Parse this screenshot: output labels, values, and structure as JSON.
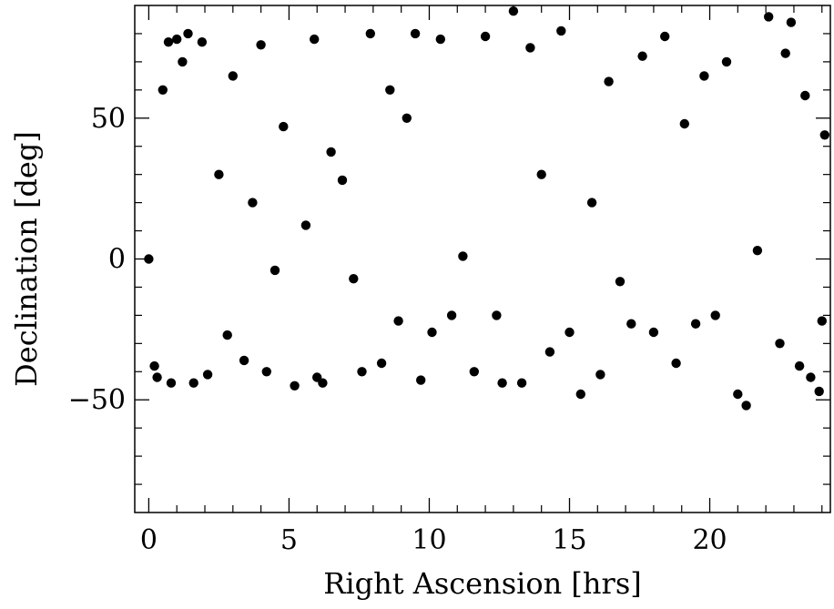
{
  "chart_data": {
    "type": "scatter",
    "title": "",
    "xlabel": "Right Ascension [hrs]",
    "ylabel": "Declination [deg]",
    "xlim": [
      -0.5,
      24.3
    ],
    "ylim": [
      -90,
      90
    ],
    "xticks": [
      0,
      5,
      10,
      15,
      20
    ],
    "yticks": [
      -50,
      0,
      50
    ],
    "xtick_labels": [
      "0",
      "5",
      "10",
      "15",
      "20"
    ],
    "ytick_labels": [
      "−50",
      "0",
      "50"
    ],
    "x_minor_step": 1,
    "y_minor_step": 10,
    "grid": false,
    "marker_color": "#000000",
    "series": [
      {
        "points": [
          [
            0.0,
            0.0
          ],
          [
            0.2,
            -38
          ],
          [
            0.3,
            -42
          ],
          [
            0.5,
            60
          ],
          [
            0.7,
            77
          ],
          [
            0.8,
            -44
          ],
          [
            1.0,
            78
          ],
          [
            1.2,
            70
          ],
          [
            1.4,
            80
          ],
          [
            1.6,
            -44
          ],
          [
            1.9,
            77
          ],
          [
            2.1,
            -41
          ],
          [
            2.5,
            30
          ],
          [
            2.8,
            -27
          ],
          [
            3.0,
            65
          ],
          [
            3.4,
            -36
          ],
          [
            3.7,
            20
          ],
          [
            4.0,
            76
          ],
          [
            4.2,
            -40
          ],
          [
            4.5,
            -4
          ],
          [
            4.8,
            47
          ],
          [
            5.2,
            -45
          ],
          [
            5.6,
            12
          ],
          [
            5.9,
            78
          ],
          [
            6.0,
            -42
          ],
          [
            6.2,
            -44
          ],
          [
            6.5,
            38
          ],
          [
            6.9,
            28
          ],
          [
            7.3,
            -7
          ],
          [
            7.6,
            -40
          ],
          [
            7.9,
            80
          ],
          [
            8.3,
            -37
          ],
          [
            8.6,
            60
          ],
          [
            8.9,
            -22
          ],
          [
            9.2,
            50
          ],
          [
            9.5,
            80
          ],
          [
            9.7,
            -43
          ],
          [
            10.1,
            -26
          ],
          [
            10.4,
            78
          ],
          [
            10.8,
            -20
          ],
          [
            11.2,
            1
          ],
          [
            11.6,
            -40
          ],
          [
            12.0,
            79
          ],
          [
            12.4,
            -20
          ],
          [
            12.6,
            -44
          ],
          [
            13.0,
            88
          ],
          [
            13.3,
            -44
          ],
          [
            13.6,
            75
          ],
          [
            14.0,
            30
          ],
          [
            14.3,
            -33
          ],
          [
            14.7,
            81
          ],
          [
            15.0,
            -26
          ],
          [
            15.4,
            -48
          ],
          [
            15.8,
            20
          ],
          [
            16.1,
            -41
          ],
          [
            16.4,
            63
          ],
          [
            16.8,
            -8
          ],
          [
            17.2,
            -23
          ],
          [
            17.6,
            72
          ],
          [
            18.0,
            -26
          ],
          [
            18.4,
            79
          ],
          [
            18.8,
            -37
          ],
          [
            19.1,
            48
          ],
          [
            19.5,
            -23
          ],
          [
            19.8,
            65
          ],
          [
            20.2,
            -20
          ],
          [
            20.6,
            70
          ],
          [
            21.0,
            -48
          ],
          [
            21.3,
            -52
          ],
          [
            21.7,
            3
          ],
          [
            22.1,
            86
          ],
          [
            22.5,
            -30
          ],
          [
            22.9,
            84
          ],
          [
            23.2,
            -38
          ],
          [
            23.6,
            -42
          ],
          [
            23.9,
            -47
          ],
          [
            24.0,
            -22
          ],
          [
            24.1,
            44
          ],
          [
            23.4,
            58
          ],
          [
            22.7,
            73
          ]
        ]
      }
    ]
  }
}
